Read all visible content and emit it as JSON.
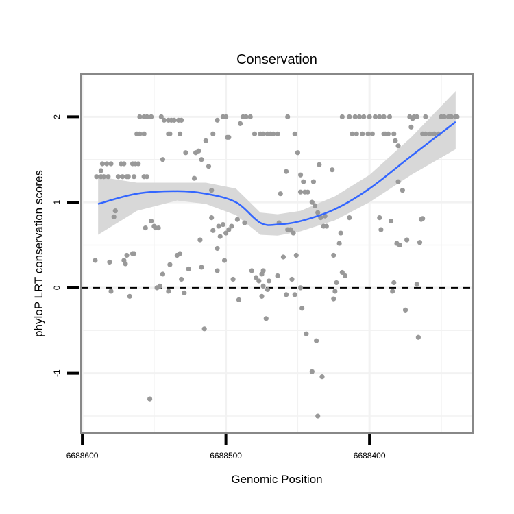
{
  "chart_data": {
    "type": "scatter",
    "title": "Conservation",
    "xlabel": "Genomic Position",
    "ylabel": "phyloP LRT conservation scores",
    "xlim": [
      6688601,
      6688328
    ],
    "x_reversed": true,
    "ylim": [
      -1.7,
      2.5
    ],
    "xticks": [
      6688600,
      6688500,
      6688400
    ],
    "xtick_labels": [
      "6688600",
      "6688500",
      "6688400"
    ],
    "yticks": [
      -1,
      0,
      1,
      2
    ],
    "ytick_labels": [
      "-1",
      "0",
      "1",
      "2"
    ],
    "grid": true,
    "reference_line": {
      "y": 0,
      "style": "dashed"
    },
    "colors": {
      "points": "#999999",
      "smooth": "#3366FF",
      "ribbon": "#D6D6D6",
      "border": "#888888",
      "grid": "#F2F2F2"
    },
    "points": [
      [
        6688590,
        1.3
      ],
      [
        6688587,
        1.3
      ],
      [
        6688585,
        1.3
      ],
      [
        6688582,
        1.3
      ],
      [
        6688575,
        1.3
      ],
      [
        6688572,
        1.3
      ],
      [
        6688569,
        1.3
      ],
      [
        6688568,
        1.3
      ],
      [
        6688564,
        1.3
      ],
      [
        6688557,
        1.3
      ],
      [
        6688555,
        1.3
      ],
      [
        6688586,
        1.45
      ],
      [
        6688583,
        1.45
      ],
      [
        6688580,
        1.45
      ],
      [
        6688573,
        1.45
      ],
      [
        6688571,
        1.45
      ],
      [
        6688565,
        1.45
      ],
      [
        6688563,
        1.45
      ],
      [
        6688561,
        1.45
      ],
      [
        6688587,
        1.37
      ],
      [
        6688560,
        2.0
      ],
      [
        6688557,
        2.0
      ],
      [
        6688555,
        2.0
      ],
      [
        6688552,
        2.0
      ],
      [
        6688545,
        2.0
      ],
      [
        6688543,
        1.96
      ],
      [
        6688540,
        1.96
      ],
      [
        6688538,
        1.96
      ],
      [
        6688536,
        1.96
      ],
      [
        6688533,
        1.96
      ],
      [
        6688531,
        1.96
      ],
      [
        6688562,
        1.8
      ],
      [
        6688560,
        1.8
      ],
      [
        6688557,
        1.8
      ],
      [
        6688539,
        1.8
      ],
      [
        6688532,
        1.8
      ],
      [
        6688591,
        0.32
      ],
      [
        6688581,
        0.3
      ],
      [
        6688578,
        0.83
      ],
      [
        6688577,
        0.9
      ],
      [
        6688580,
        -0.04
      ],
      [
        6688571,
        0.32
      ],
      [
        6688569,
        0.38
      ],
      [
        6688567,
        -0.1
      ],
      [
        6688565,
        0.4
      ],
      [
        6688564,
        0.4
      ],
      [
        6688570,
        0.28
      ],
      [
        6688556,
        0.7
      ],
      [
        6688552,
        0.78
      ],
      [
        6688550,
        0.72
      ],
      [
        6688549,
        0.7
      ],
      [
        6688547,
        0.7
      ],
      [
        6688548,
        0.0
      ],
      [
        6688546,
        0.02
      ],
      [
        6688544,
        0.16
      ],
      [
        6688540,
        -0.04
      ],
      [
        6688539,
        0.27
      ],
      [
        6688534,
        0.38
      ],
      [
        6688532,
        0.4
      ],
      [
        6688531,
        0.1
      ],
      [
        6688529,
        -0.06
      ],
      [
        6688526,
        0.22
      ],
      [
        6688553,
        -1.3
      ],
      [
        6688544,
        1.5
      ],
      [
        6688540,
        1.8
      ],
      [
        6688532,
        1.8
      ],
      [
        6688528,
        1.58
      ],
      [
        6688522,
        1.28
      ],
      [
        6688521,
        1.58
      ],
      [
        6688519,
        1.6
      ],
      [
        6688512,
        1.42
      ],
      [
        6688510,
        1.14
      ],
      [
        6688517,
        1.5
      ],
      [
        6688514,
        1.72
      ],
      [
        6688506,
        1.96
      ],
      [
        6688518,
        0.56
      ],
      [
        6688517,
        0.24
      ],
      [
        6688515,
        -0.48
      ],
      [
        6688510,
        0.82
      ],
      [
        6688509,
        0.67
      ],
      [
        6688505,
        0.72
      ],
      [
        6688504,
        0.6
      ],
      [
        6688502,
        0.74
      ],
      [
        6688501,
        0.32
      ],
      [
        6688500,
        0.64
      ],
      [
        6688498,
        0.68
      ],
      [
        6688496,
        0.72
      ],
      [
        6688495,
        0.1
      ],
      [
        6688492,
        0.8
      ],
      [
        6688491,
        -0.14
      ],
      [
        6688506,
        0.46
      ],
      [
        6688506,
        0.2
      ],
      [
        6688502,
        2.0
      ],
      [
        6688500,
        2.0
      ],
      [
        6688498,
        1.76
      ],
      [
        6688499,
        1.76
      ],
      [
        6688509,
        1.8
      ],
      [
        6688490,
        1.92
      ],
      [
        6688488,
        2.0
      ],
      [
        6688486,
        2.0
      ],
      [
        6688483,
        2.0
      ],
      [
        6688480,
        1.8
      ],
      [
        6688476,
        1.8
      ],
      [
        6688474,
        1.8
      ],
      [
        6688471,
        1.8
      ],
      [
        6688469,
        1.8
      ],
      [
        6688467,
        1.8
      ],
      [
        6688464,
        1.8
      ],
      [
        6688452,
        1.8
      ],
      [
        6688487,
        0.76
      ],
      [
        6688482,
        0.2
      ],
      [
        6688479,
        0.12
      ],
      [
        6688475,
        0.16
      ],
      [
        6688474,
        0.2
      ],
      [
        6688474,
        0.02
      ],
      [
        6688475,
        -0.1
      ],
      [
        6688471,
        -0.02
      ],
      [
        6688472,
        -0.36
      ],
      [
        6688477,
        0.08
      ],
      [
        6688470,
        0.08
      ],
      [
        6688464,
        0.14
      ],
      [
        6688460,
        0.36
      ],
      [
        6688458,
        -0.08
      ],
      [
        6688463,
        0.76
      ],
      [
        6688457,
        0.68
      ],
      [
        6688455,
        0.68
      ],
      [
        6688454,
        0.1
      ],
      [
        6688452,
        -0.08
      ],
      [
        6688451,
        0.38
      ],
      [
        6688450,
        1.58
      ],
      [
        6688462,
        1.1
      ],
      [
        6688458,
        1.36
      ],
      [
        6688453,
        0.64
      ],
      [
        6688448,
        1.32
      ],
      [
        6688446,
        1.24
      ],
      [
        6688448,
        1.12
      ],
      [
        6688445,
        1.12
      ],
      [
        6688443,
        1.12
      ],
      [
        6688440,
        1.0
      ],
      [
        6688438,
        0.96
      ],
      [
        6688436,
        0.88
      ],
      [
        6688434,
        0.82
      ],
      [
        6688432,
        0.72
      ],
      [
        6688430,
        0.72
      ],
      [
        6688439,
        1.24
      ],
      [
        6688435,
        1.44
      ],
      [
        6688431,
        0.84
      ],
      [
        6688426,
        1.38
      ],
      [
        6688448,
        0.0
      ],
      [
        6688444,
        -0.54
      ],
      [
        6688447,
        -0.24
      ],
      [
        6688440,
        -0.98
      ],
      [
        6688437,
        -0.62
      ],
      [
        6688436,
        -1.5
      ],
      [
        6688433,
        -1.04
      ],
      [
        6688425,
        -0.13
      ],
      [
        6688424,
        -0.04
      ],
      [
        6688423,
        0.06
      ],
      [
        6688421,
        0.52
      ],
      [
        6688420,
        0.64
      ],
      [
        6688425,
        0.38
      ],
      [
        6688419,
        0.18
      ],
      [
        6688417,
        0.14
      ],
      [
        6688414,
        0.82
      ],
      [
        6688457,
        2.0
      ],
      [
        6688419,
        2.0
      ],
      [
        6688414,
        2.0
      ],
      [
        6688410,
        2.0
      ],
      [
        6688407,
        2.0
      ],
      [
        6688404,
        2.0
      ],
      [
        6688400,
        2.0
      ],
      [
        6688396,
        2.0
      ],
      [
        6688393,
        2.0
      ],
      [
        6688390,
        2.0
      ],
      [
        6688386,
        2.0
      ],
      [
        6688372,
        2.0
      ],
      [
        6688369,
        2.0
      ],
      [
        6688367,
        2.0
      ],
      [
        6688361,
        2.0
      ],
      [
        6688350,
        2.0
      ],
      [
        6688348,
        2.0
      ],
      [
        6688345,
        2.0
      ],
      [
        6688343,
        2.0
      ],
      [
        6688340,
        2.0
      ],
      [
        6688339,
        2.0
      ],
      [
        6688412,
        1.8
      ],
      [
        6688409,
        1.8
      ],
      [
        6688405,
        1.8
      ],
      [
        6688401,
        1.8
      ],
      [
        6688398,
        1.8
      ],
      [
        6688390,
        1.8
      ],
      [
        6688387,
        1.8
      ],
      [
        6688383,
        1.8
      ],
      [
        6688363,
        1.8
      ],
      [
        6688361,
        1.8
      ],
      [
        6688358,
        1.8
      ],
      [
        6688355,
        1.8
      ],
      [
        6688352,
        1.8
      ],
      [
        6688389,
        1.8
      ],
      [
        6688382,
        1.72
      ],
      [
        6688380,
        1.66
      ],
      [
        6688380,
        1.24
      ],
      [
        6688377,
        1.14
      ],
      [
        6688393,
        0.82
      ],
      [
        6688392,
        0.68
      ],
      [
        6688385,
        0.78
      ],
      [
        6688370,
        1.98
      ],
      [
        6688371,
        1.88
      ],
      [
        6688363,
        0.81
      ],
      [
        6688364,
        0.8
      ],
      [
        6688381,
        0.52
      ],
      [
        6688379,
        0.5
      ],
      [
        6688374,
        0.56
      ],
      [
        6688365,
        0.53
      ],
      [
        6688383,
        0.06
      ],
      [
        6688384,
        -0.04
      ],
      [
        6688375,
        -0.26
      ],
      [
        6688367,
        0.04
      ],
      [
        6688366,
        -0.58
      ]
    ],
    "smooth": {
      "x": [
        6688589,
        6688562,
        6688534,
        6688514,
        6688493,
        6688476,
        6688464,
        6688448,
        6688424,
        6688400,
        6688371,
        6688340
      ],
      "y": [
        0.98,
        1.1,
        1.13,
        1.1,
        1.0,
        0.76,
        0.74,
        0.78,
        0.92,
        1.16,
        1.54,
        1.94
      ],
      "upper": [
        1.3,
        1.23,
        1.23,
        1.23,
        1.16,
        0.88,
        0.86,
        0.9,
        1.07,
        1.32,
        1.76,
        2.3
      ],
      "lower": [
        0.62,
        0.9,
        1.02,
        0.98,
        0.85,
        0.62,
        0.61,
        0.66,
        0.79,
        1.0,
        1.32,
        1.62
      ]
    }
  }
}
